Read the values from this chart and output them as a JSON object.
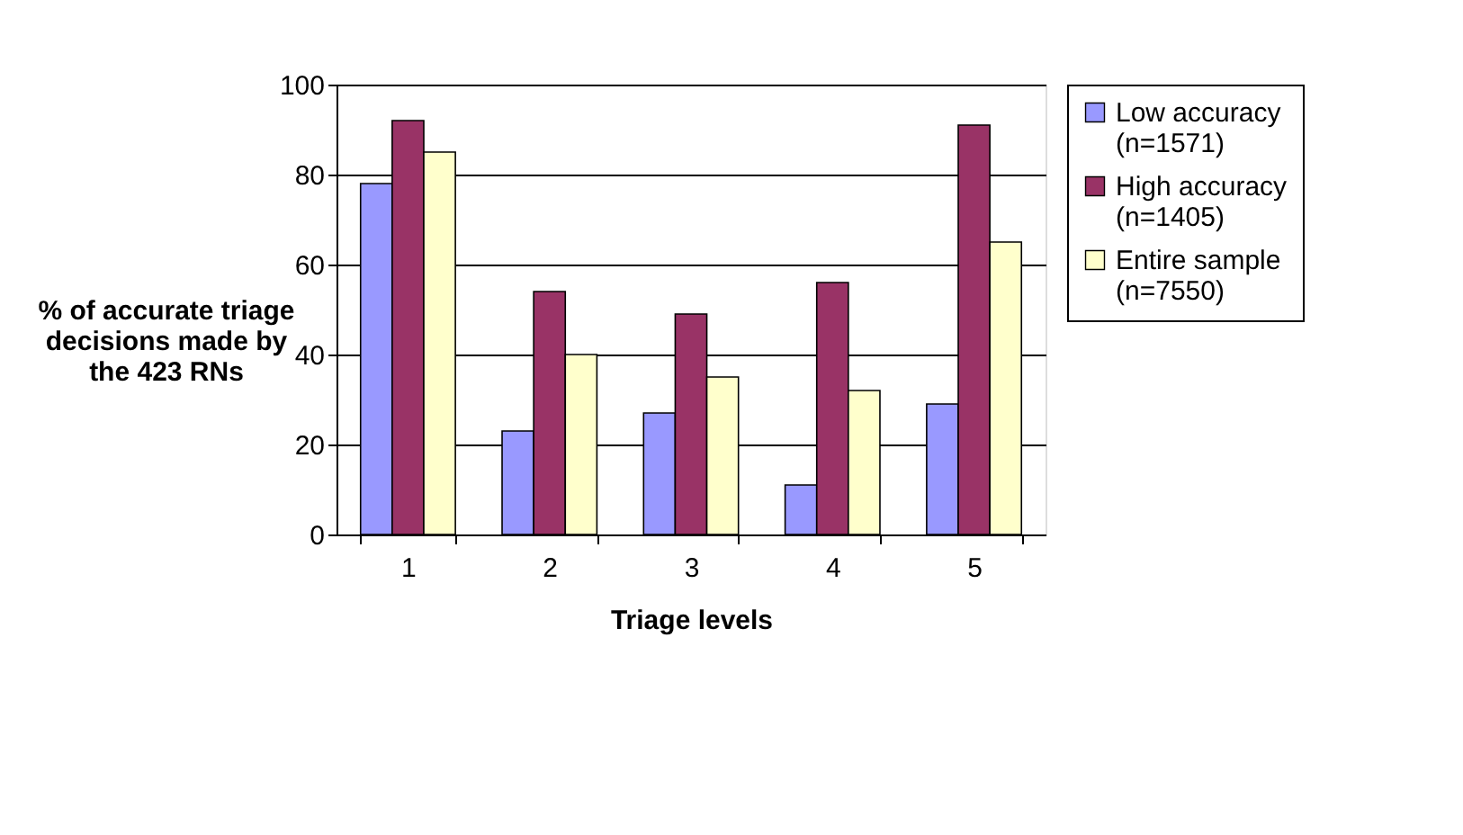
{
  "chart_data": {
    "type": "bar",
    "xlabel": "Triage levels",
    "ylabel": "% of accurate triage decisions made by the 423 RNs",
    "categories": [
      "1",
      "2",
      "3",
      "4",
      "5"
    ],
    "series": [
      {
        "name": "Low accuracy (n=1571)",
        "color": "#9999ff",
        "values": [
          78,
          23,
          27,
          11,
          29
        ]
      },
      {
        "name": "High accuracy (n=1405)",
        "color": "#993366",
        "values": [
          92,
          54,
          49,
          56,
          91
        ]
      },
      {
        "name": "Entire sample (n=7550)",
        "color": "#ffffcc",
        "values": [
          85,
          40,
          35,
          32,
          65
        ]
      }
    ],
    "ylim": [
      0,
      100
    ],
    "yticks": [
      0,
      20,
      40,
      60,
      80,
      100
    ],
    "grid": "y",
    "legend": "right"
  }
}
